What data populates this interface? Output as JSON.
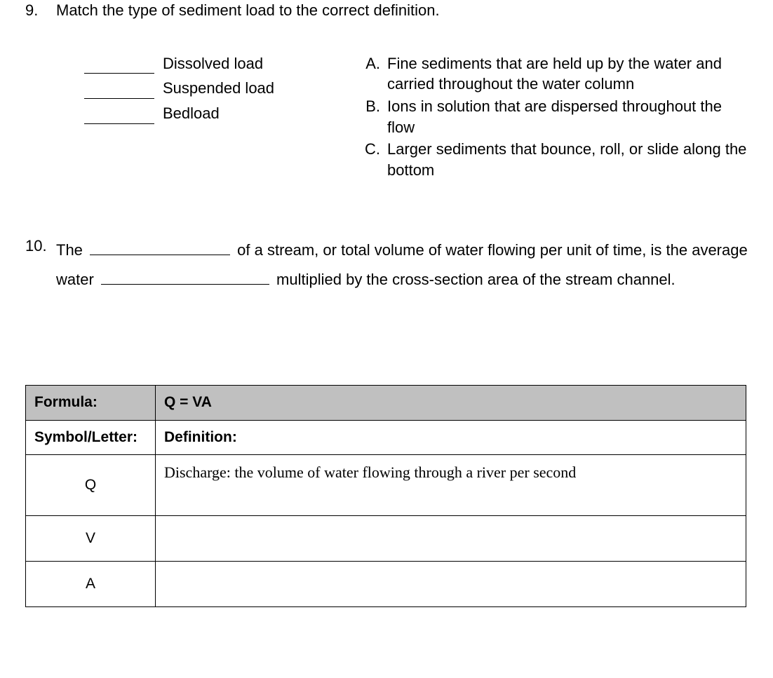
{
  "q9": {
    "number": "9.",
    "prompt": "Match the type of sediment load to the correct definition.",
    "terms": [
      {
        "label": "Dissolved load"
      },
      {
        "label": "Suspended load"
      },
      {
        "label": "Bedload"
      }
    ],
    "definitions": [
      {
        "letter": "A.",
        "text": "Fine sediments that are held up by the water and carried throughout the water column"
      },
      {
        "letter": "B.",
        "text": "Ions in solution that are dispersed throughout the flow"
      },
      {
        "letter": "C.",
        "text": "Larger sediments that bounce, roll, or slide along the bottom"
      }
    ]
  },
  "q10": {
    "number": "10.",
    "seg1": "The ",
    "seg2": " of a stream, or total volume of water flowing per unit of time, is the average water ",
    "seg3": " multiplied by the cross-section area of the stream channel."
  },
  "formula_table": {
    "header_left": "Formula:",
    "header_right": "Q = VA",
    "sub_left": "Symbol/Letter:",
    "sub_right": "Definition:",
    "rows": [
      {
        "symbol": "Q",
        "definition": "Discharge: the volume of water flowing through a river per second"
      },
      {
        "symbol": "V",
        "definition": ""
      },
      {
        "symbol": "A",
        "definition": ""
      }
    ],
    "colors": {
      "header_bg": "#c0c0c0",
      "border": "#000000",
      "text": "#000000",
      "page_bg": "#ffffff"
    }
  }
}
